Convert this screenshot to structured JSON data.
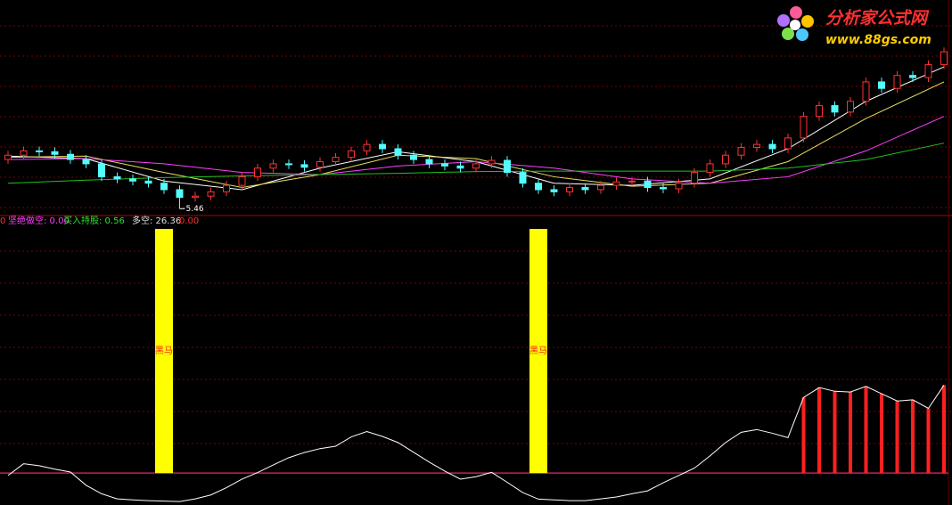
{
  "logo": {
    "title": "分析家公式网",
    "url": "www.88gs.com"
  },
  "chart_data": [
    {
      "type": "candlestick",
      "categories": [
        null,
        null,
        null,
        null,
        null,
        null,
        null,
        null,
        null,
        null,
        null,
        null,
        null,
        null,
        null,
        null,
        null,
        null,
        null,
        null,
        null,
        null,
        null,
        null,
        null,
        null,
        null,
        null,
        null,
        null,
        null,
        null,
        null,
        null,
        null,
        null,
        null,
        null,
        null,
        null,
        null,
        null,
        null,
        null,
        null,
        null,
        null,
        null,
        null,
        null,
        null,
        null,
        null,
        null,
        null,
        null,
        null,
        null,
        null,
        null,
        null
      ],
      "open": [
        6.6,
        6.7,
        6.8,
        6.78,
        6.72,
        6.6,
        6.5,
        6.2,
        6.15,
        6.1,
        6.05,
        5.9,
        5.72,
        5.75,
        5.85,
        6.0,
        6.2,
        6.4,
        6.5,
        6.48,
        6.42,
        6.55,
        6.65,
        6.8,
        6.95,
        6.85,
        6.7,
        6.6,
        6.5,
        6.45,
        6.4,
        6.5,
        6.58,
        6.3,
        6.05,
        5.9,
        5.85,
        5.95,
        5.9,
        6.0,
        6.08,
        6.1,
        5.95,
        5.92,
        6.05,
        6.3,
        6.5,
        6.7,
        6.88,
        6.95,
        6.85,
        7.1,
        7.6,
        7.85,
        7.7,
        7.95,
        8.4,
        8.25,
        8.55,
        8.5,
        8.8
      ],
      "high": [
        6.8,
        6.9,
        6.9,
        6.88,
        6.82,
        6.7,
        6.6,
        6.3,
        6.25,
        6.2,
        6.15,
        6.0,
        5.85,
        5.95,
        6.1,
        6.3,
        6.5,
        6.6,
        6.6,
        6.58,
        6.65,
        6.75,
        6.9,
        7.05,
        7.05,
        6.95,
        6.8,
        6.7,
        6.6,
        6.55,
        6.6,
        6.68,
        6.68,
        6.4,
        6.15,
        6.0,
        6.05,
        6.05,
        6.1,
        6.18,
        6.2,
        6.2,
        6.05,
        6.15,
        6.4,
        6.6,
        6.8,
        6.98,
        7.05,
        7.05,
        7.2,
        7.7,
        7.95,
        7.95,
        8.05,
        8.5,
        8.5,
        8.65,
        8.65,
        8.9,
        9.2
      ],
      "low": [
        6.5,
        6.6,
        6.68,
        6.62,
        6.5,
        6.4,
        6.1,
        6.05,
        6.0,
        5.95,
        5.8,
        5.46,
        5.62,
        5.65,
        5.75,
        5.9,
        6.1,
        6.3,
        6.38,
        6.32,
        6.32,
        6.45,
        6.55,
        6.7,
        6.75,
        6.6,
        6.5,
        6.4,
        6.35,
        6.3,
        6.3,
        6.4,
        6.2,
        5.95,
        5.8,
        5.75,
        5.75,
        5.8,
        5.8,
        5.9,
        5.98,
        5.85,
        5.82,
        5.82,
        5.95,
        6.2,
        6.4,
        6.6,
        6.78,
        6.75,
        6.75,
        7.0,
        7.5,
        7.6,
        7.6,
        7.85,
        8.15,
        8.15,
        8.4,
        8.4,
        8.7
      ],
      "close": [
        6.7,
        6.8,
        6.78,
        6.72,
        6.6,
        6.5,
        6.2,
        6.15,
        6.1,
        6.05,
        5.9,
        5.72,
        5.75,
        5.85,
        6.0,
        6.2,
        6.4,
        6.5,
        6.48,
        6.42,
        6.55,
        6.65,
        6.8,
        6.95,
        6.85,
        6.7,
        6.6,
        6.5,
        6.45,
        6.4,
        6.5,
        6.58,
        6.3,
        6.05,
        5.9,
        5.85,
        5.95,
        5.9,
        6.0,
        6.08,
        6.1,
        5.95,
        5.92,
        6.05,
        6.3,
        6.5,
        6.7,
        6.88,
        6.95,
        6.85,
        7.1,
        7.6,
        7.85,
        7.7,
        7.95,
        8.4,
        8.25,
        8.55,
        8.5,
        8.8,
        9.1
      ],
      "ylim": [
        5.3,
        10.3
      ],
      "up_color": "#ff3232",
      "down_color": "#54fcfc",
      "annotation": "5.46",
      "series": [
        {
          "color": "#ffffff",
          "x": [
            0,
            5,
            10,
            15,
            20,
            25,
            30,
            35,
            40,
            45,
            50,
            55,
            60
          ],
          "values": [
            6.68,
            6.62,
            6.1,
            5.9,
            6.4,
            6.78,
            6.55,
            6.05,
            6.0,
            6.15,
            6.85,
            7.95,
            8.75
          ]
        },
        {
          "color": "#e8e060",
          "x": [
            0,
            5,
            10,
            15,
            20,
            25,
            30,
            35,
            40,
            45,
            50,
            55,
            60
          ],
          "values": [
            6.65,
            6.68,
            6.3,
            5.95,
            6.25,
            6.7,
            6.62,
            6.2,
            5.98,
            6.05,
            6.55,
            7.55,
            8.4
          ]
        },
        {
          "color": "#ff40ff",
          "x": [
            0,
            5,
            10,
            15,
            20,
            25,
            30,
            35,
            40,
            45,
            50,
            55,
            60
          ],
          "values": [
            6.6,
            6.62,
            6.5,
            6.3,
            6.25,
            6.45,
            6.55,
            6.4,
            6.15,
            6.05,
            6.2,
            6.8,
            7.6
          ]
        },
        {
          "color": "#20c020",
          "x": [
            0,
            5,
            10,
            15,
            20,
            25,
            30,
            35,
            40,
            45,
            50,
            55,
            60
          ],
          "values": [
            6.05,
            6.12,
            6.18,
            6.22,
            6.25,
            6.28,
            6.32,
            6.33,
            6.33,
            6.33,
            6.4,
            6.6,
            6.98
          ]
        }
      ]
    },
    {
      "type": "indicator",
      "legend": [
        {
          "text": "0",
          "color": "#ff3232"
        },
        {
          "text": "坚绝做空: 0.00",
          "color": "#ff40ff"
        },
        {
          "text": "买入持股: 0.56",
          "color": "#30e030"
        },
        {
          "text": "多空: 26.36",
          "color": "#e0e0e0"
        },
        {
          "text": "0.00",
          "color": "#ff3232"
        }
      ],
      "ylim": [
        -13.1,
        105.5
      ],
      "series": [
        {
          "type": "bar",
          "color": "#ffff00",
          "label": "黑马",
          "values": [
            null,
            null,
            null,
            null,
            null,
            null,
            null,
            null,
            null,
            null,
            100,
            null,
            null,
            null,
            null,
            null,
            null,
            null,
            null,
            null,
            null,
            null,
            null,
            null,
            null,
            null,
            null,
            null,
            null,
            null,
            null,
            null,
            null,
            null,
            100,
            null,
            null,
            null,
            null,
            null,
            null,
            null,
            null,
            null,
            null,
            null,
            null,
            null,
            null,
            null,
            null,
            null,
            null,
            null,
            null,
            null,
            null,
            null,
            null,
            null,
            null
          ]
        },
        {
          "type": "bar",
          "color": "#ff2020",
          "values": [
            null,
            null,
            null,
            null,
            null,
            null,
            null,
            null,
            null,
            null,
            null,
            null,
            null,
            null,
            null,
            null,
            null,
            null,
            null,
            null,
            null,
            null,
            null,
            null,
            null,
            null,
            null,
            null,
            null,
            null,
            null,
            null,
            null,
            null,
            null,
            null,
            null,
            null,
            null,
            null,
            null,
            null,
            null,
            null,
            null,
            null,
            null,
            null,
            null,
            null,
            null,
            31.0,
            35.0,
            33.5,
            33.2,
            35.5,
            32.5,
            29.5,
            30.0,
            26.5,
            36.0
          ]
        },
        {
          "type": "line",
          "color": "#ffffff",
          "values": [
            -1.0,
            3.8,
            3.0,
            1.6,
            0.4,
            -5.0,
            -8.5,
            -10.6,
            -11.0,
            -11.3,
            -11.5,
            -11.7,
            -10.6,
            -9.0,
            -6.0,
            -2.5,
            0.2,
            3.3,
            6.3,
            8.4,
            10.0,
            11.0,
            14.8,
            17.0,
            15.0,
            12.5,
            8.5,
            4.5,
            0.8,
            -2.5,
            -1.5,
            0.3,
            -3.8,
            -8.0,
            -10.7,
            -11.0,
            -11.3,
            -11.3,
            -10.6,
            -9.8,
            -8.5,
            -7.3,
            -4.0,
            -1.0,
            2.0,
            7.0,
            12.5,
            16.7,
            17.8,
            16.3,
            14.5,
            31.0,
            35.0,
            33.5,
            33.2,
            35.5,
            32.5,
            29.5,
            30.0,
            26.5,
            36.0
          ]
        }
      ]
    }
  ]
}
